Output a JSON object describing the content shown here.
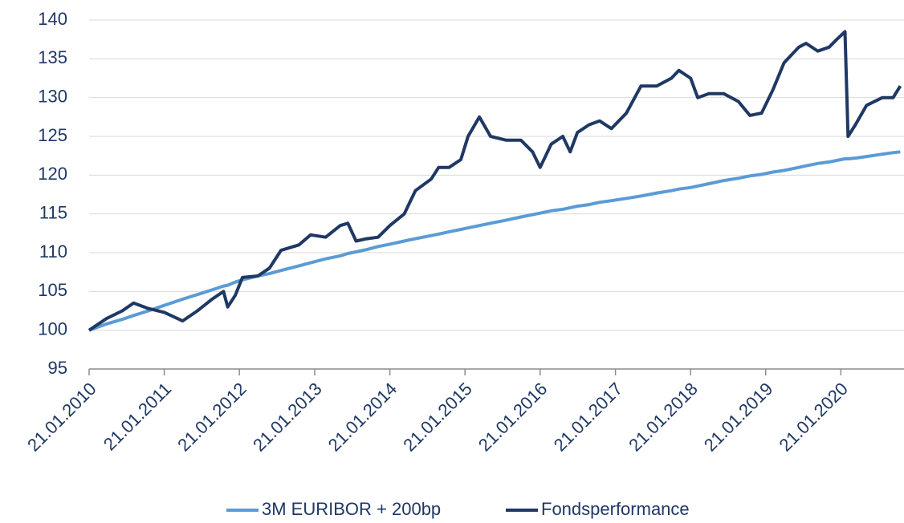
{
  "chart_data": {
    "type": "line",
    "x": [
      "21.01.2010",
      "15.04.2010",
      "01.07.2010",
      "25.08.2010",
      "05.11.2010",
      "21.01.2011",
      "20.04.2011",
      "01.07.2011",
      "10.09.2011",
      "05.11.2011",
      "25.11.2011",
      "01.01.2012",
      "05.02.2012",
      "20.04.2012",
      "15.06.2012",
      "10.08.2012",
      "05.11.2012",
      "01.01.2013",
      "15.03.2013",
      "25.05.2013",
      "01.07.2013",
      "10.08.2013",
      "01.10.2013",
      "25.11.2013",
      "21.01.2014",
      "01.04.2014",
      "25.05.2014",
      "10.08.2014",
      "15.09.2014",
      "05.11.2014",
      "01.01.2015",
      "05.02.2015",
      "01.04.2015",
      "25.05.2015",
      "10.08.2015",
      "20.10.2015",
      "15.12.2015",
      "21.01.2016",
      "15.03.2016",
      "10.05.2016",
      "15.06.2016",
      "20.07.2016",
      "15.09.2016",
      "05.11.2016",
      "01.01.2017",
      "15.03.2017",
      "25.05.2017",
      "10.08.2017",
      "20.10.2017",
      "25.11.2017",
      "21.01.2018",
      "25.02.2018",
      "20.04.2018",
      "01.07.2018",
      "10.09.2018",
      "05.11.2018",
      "01.01.2019",
      "25.02.2019",
      "20.04.2019",
      "01.07.2019",
      "05.08.2019",
      "01.10.2019",
      "25.11.2019",
      "01.01.2020",
      "10.02.2020",
      "25.02.2020",
      "01.04.2020",
      "25.05.2020",
      "10.08.2020",
      "01.10.2020",
      "05.11.2020"
    ],
    "series": [
      {
        "name": "3M EURIBOR + 200bp",
        "color": "#5b9bd5",
        "values": [
          100,
          100.8,
          101.4,
          101.9,
          102.5,
          103.2,
          104.0,
          104.6,
          105.2,
          105.7,
          105.8,
          106.2,
          106.5,
          107.0,
          107.3,
          107.7,
          108.3,
          108.7,
          109.2,
          109.6,
          109.9,
          110.1,
          110.4,
          110.8,
          111.1,
          111.5,
          111.8,
          112.2,
          112.4,
          112.7,
          113.0,
          113.2,
          113.5,
          113.8,
          114.2,
          114.6,
          114.9,
          115.1,
          115.4,
          115.6,
          115.8,
          116.0,
          116.2,
          116.5,
          116.7,
          117.0,
          117.3,
          117.7,
          118.0,
          118.2,
          118.4,
          118.6,
          118.9,
          119.3,
          119.6,
          119.9,
          120.1,
          120.4,
          120.6,
          121.0,
          121.2,
          121.5,
          121.7,
          121.9,
          122.1,
          122.1,
          122.2,
          122.4,
          122.7,
          122.9,
          123.0
        ]
      },
      {
        "name": "Fondsperformance",
        "color": "#1f3864",
        "values": [
          100,
          101.5,
          102.5,
          103.5,
          102.8,
          102.3,
          101.2,
          102.5,
          104,
          105,
          103,
          104.5,
          106.8,
          107,
          108,
          110.3,
          111,
          112.3,
          112,
          113.5,
          113.8,
          111.5,
          111.8,
          112,
          113.5,
          115,
          118,
          119.5,
          121,
          121,
          122,
          125,
          127.5,
          125,
          124.5,
          124.5,
          123,
          121,
          124,
          125,
          123,
          125.5,
          126.5,
          127,
          126,
          128,
          131.5,
          131.5,
          132.5,
          133.5,
          132.5,
          130,
          130.5,
          130.5,
          129.5,
          127.7,
          128,
          131,
          134.5,
          136.5,
          137,
          136,
          136.5,
          137.5,
          138.5,
          125,
          126.5,
          129,
          130,
          130,
          131.5
        ]
      }
    ],
    "xlim": [
      "21.01.2010",
      "15.11.2020"
    ],
    "xticks": [
      "21.01.2010",
      "21.01.2011",
      "21.01.2012",
      "21.01.2013",
      "21.01.2014",
      "21.01.2015",
      "21.01.2016",
      "21.01.2017",
      "21.01.2018",
      "21.01.2019",
      "21.01.2020"
    ],
    "ylim": [
      95,
      140
    ],
    "yticks": [
      95,
      100,
      105,
      110,
      115,
      120,
      125,
      130,
      135,
      140
    ],
    "grid": true,
    "legend": "bottom"
  }
}
